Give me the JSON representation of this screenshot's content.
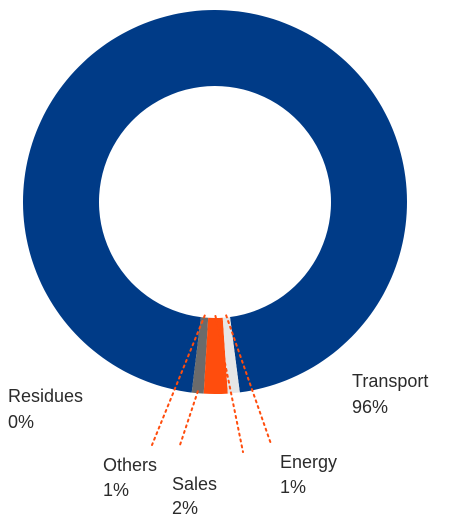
{
  "chart_data": {
    "type": "pie",
    "donut": true,
    "slices": [
      {
        "label": "Transport",
        "display_value": "96%",
        "value": 96,
        "color": "#003b87"
      },
      {
        "label": "Energy",
        "display_value": "1%",
        "value": 1,
        "color": "#e6e6e6"
      },
      {
        "label": "Sales",
        "display_value": "2%",
        "value": 2,
        "color": "#ff4d0d"
      },
      {
        "label": "Others",
        "display_value": "1%",
        "value": 1,
        "color": "#6b6b6b"
      },
      {
        "label": "Residues",
        "display_value": "0%",
        "value": 0,
        "color": "#9a9a9a"
      }
    ],
    "leader_line_color": "#ff4d0d",
    "legend": "none",
    "title": ""
  }
}
